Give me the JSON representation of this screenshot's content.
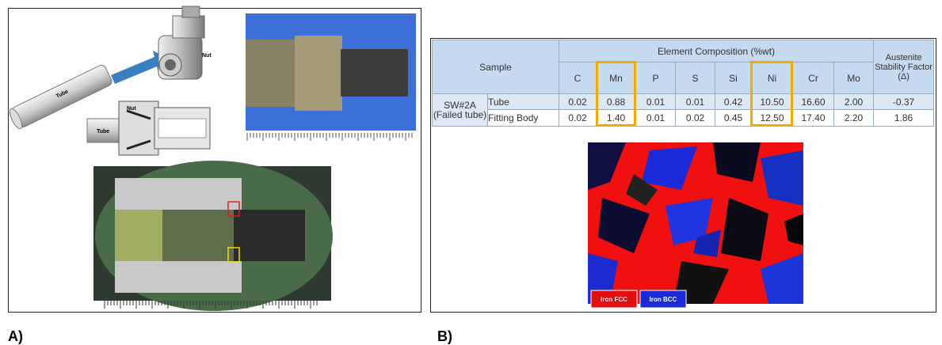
{
  "panel_a": {
    "label": "A)",
    "diagram_labels": [
      "Nut",
      "Tube",
      "Nut",
      "Tube"
    ]
  },
  "panel_b": {
    "label": "B)",
    "table": {
      "header": {
        "sample": "Sample",
        "composition": "Element Composition (%wt)",
        "factor": "Austenite Stability Factor",
        "factor_symbol": "(Δ)"
      },
      "elements": [
        "C",
        "Mn",
        "P",
        "S",
        "Si",
        "Ni",
        "Cr",
        "Mo"
      ],
      "group": "SW#2A (Failed tube)",
      "rows": [
        {
          "part": "Tube",
          "values": [
            "0.02",
            "0.88",
            "0.01",
            "0.01",
            "0.42",
            "10.50",
            "16.60",
            "2.00"
          ],
          "factor": "-0.37"
        },
        {
          "part": "Fitting Body",
          "values": [
            "0.02",
            "1.40",
            "0.01",
            "0.02",
            "0.45",
            "12.50",
            "17.40",
            "2.20"
          ],
          "factor": "1.86"
        }
      ]
    },
    "map_legend": [
      "Iron FCC",
      "Iron BCC"
    ]
  }
}
